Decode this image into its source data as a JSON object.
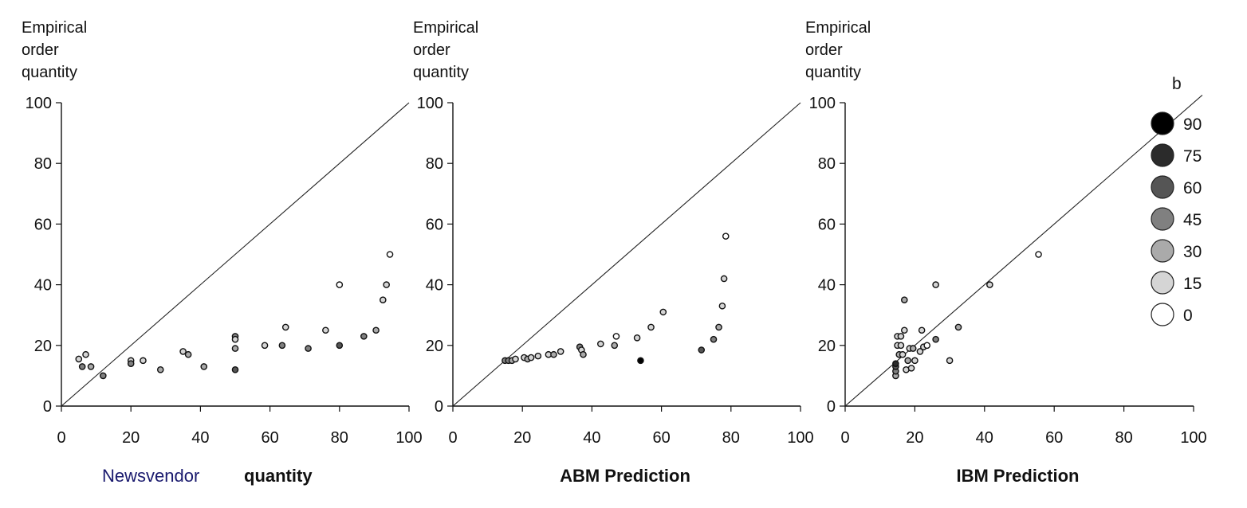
{
  "chart_data": [
    {
      "type": "scatter",
      "ylabel": [
        "Empirical",
        "order",
        "quantity"
      ],
      "xlabel_plain": "Newsvendor",
      "xlabel_bold": "quantity",
      "xlim": [
        0,
        100
      ],
      "ylim": [
        0,
        100
      ],
      "xticks": [
        "0",
        "20",
        "40",
        "60",
        "80",
        "100"
      ],
      "yticks": [
        "0",
        "20",
        "40",
        "60",
        "80",
        "100"
      ],
      "reference_line": "y = x",
      "points": [
        {
          "x": 5,
          "y": 15.5,
          "b": 15
        },
        {
          "x": 6,
          "y": 13,
          "b": 45
        },
        {
          "x": 7,
          "y": 17,
          "b": 15
        },
        {
          "x": 8.5,
          "y": 13,
          "b": 30
        },
        {
          "x": 12,
          "y": 10,
          "b": 45
        },
        {
          "x": 20,
          "y": 15,
          "b": 15
        },
        {
          "x": 20,
          "y": 14,
          "b": 45
        },
        {
          "x": 23.5,
          "y": 15,
          "b": 15
        },
        {
          "x": 28.5,
          "y": 12,
          "b": 30
        },
        {
          "x": 35,
          "y": 18,
          "b": 15
        },
        {
          "x": 36.5,
          "y": 17,
          "b": 30
        },
        {
          "x": 41,
          "y": 13,
          "b": 30
        },
        {
          "x": 50,
          "y": 23,
          "b": 45
        },
        {
          "x": 50,
          "y": 22,
          "b": 15
        },
        {
          "x": 50,
          "y": 19,
          "b": 30
        },
        {
          "x": 50,
          "y": 12,
          "b": 60
        },
        {
          "x": 58.5,
          "y": 20,
          "b": 15
        },
        {
          "x": 63.5,
          "y": 20,
          "b": 45
        },
        {
          "x": 64.5,
          "y": 26,
          "b": 15
        },
        {
          "x": 71,
          "y": 19,
          "b": 45
        },
        {
          "x": 76,
          "y": 25,
          "b": 15
        },
        {
          "x": 80,
          "y": 40,
          "b": 0
        },
        {
          "x": 80,
          "y": 20,
          "b": 60
        },
        {
          "x": 87,
          "y": 23,
          "b": 45
        },
        {
          "x": 90.5,
          "y": 25,
          "b": 30
        },
        {
          "x": 92.5,
          "y": 35,
          "b": 15
        },
        {
          "x": 93.5,
          "y": 40,
          "b": 15
        },
        {
          "x": 94.5,
          "y": 50,
          "b": 0
        }
      ]
    },
    {
      "type": "scatter",
      "ylabel": [
        "Empirical",
        "order",
        "quantity"
      ],
      "xlabel_bold": "ABM Prediction",
      "xlim": [
        0,
        100
      ],
      "ylim": [
        0,
        100
      ],
      "xticks": [
        "0",
        "20",
        "40",
        "60",
        "80",
        "100"
      ],
      "yticks": [
        "0",
        "20",
        "40",
        "60",
        "80",
        "100"
      ],
      "reference_line": "y = x",
      "points": [
        {
          "x": 15,
          "y": 15,
          "b": 45
        },
        {
          "x": 16,
          "y": 15,
          "b": 45
        },
        {
          "x": 17,
          "y": 15,
          "b": 30
        },
        {
          "x": 18,
          "y": 15.5,
          "b": 15
        },
        {
          "x": 20.5,
          "y": 16,
          "b": 15
        },
        {
          "x": 21.5,
          "y": 15.5,
          "b": 30
        },
        {
          "x": 22.5,
          "y": 16,
          "b": 15
        },
        {
          "x": 24.5,
          "y": 16.5,
          "b": 15
        },
        {
          "x": 27.5,
          "y": 17,
          "b": 15
        },
        {
          "x": 29,
          "y": 17,
          "b": 30
        },
        {
          "x": 31,
          "y": 18,
          "b": 15
        },
        {
          "x": 36.5,
          "y": 19.5,
          "b": 45
        },
        {
          "x": 37,
          "y": 18.5,
          "b": 15
        },
        {
          "x": 37.5,
          "y": 17,
          "b": 30
        },
        {
          "x": 42.5,
          "y": 20.5,
          "b": 15
        },
        {
          "x": 46.5,
          "y": 20,
          "b": 30
        },
        {
          "x": 47,
          "y": 23,
          "b": 0
        },
        {
          "x": 53,
          "y": 22.5,
          "b": 15
        },
        {
          "x": 54,
          "y": 15,
          "b": 90
        },
        {
          "x": 57,
          "y": 26,
          "b": 15
        },
        {
          "x": 60.5,
          "y": 31,
          "b": 15
        },
        {
          "x": 71.5,
          "y": 18.5,
          "b": 60
        },
        {
          "x": 75,
          "y": 22,
          "b": 45
        },
        {
          "x": 76.5,
          "y": 26,
          "b": 30
        },
        {
          "x": 77.5,
          "y": 33,
          "b": 15
        },
        {
          "x": 78,
          "y": 42,
          "b": 15
        },
        {
          "x": 78.5,
          "y": 56,
          "b": 0
        }
      ]
    },
    {
      "type": "scatter",
      "ylabel": [
        "Empirical",
        "order",
        "quantity"
      ],
      "xlabel_bold": "IBM Prediction",
      "xlim": [
        0,
        100
      ],
      "ylim": [
        0,
        100
      ],
      "xticks": [
        "0",
        "20",
        "40",
        "60",
        "80",
        "100"
      ],
      "yticks": [
        "0",
        "20",
        "40",
        "60",
        "80",
        "100"
      ],
      "reference_line": "y = x",
      "legend": {
        "title": "b",
        "placement": "right",
        "entries": [
          {
            "label": "90",
            "b": 90
          },
          {
            "label": "75",
            "b": 75
          },
          {
            "label": "60",
            "b": 60
          },
          {
            "label": "45",
            "b": 45
          },
          {
            "label": "30",
            "b": 30
          },
          {
            "label": "15",
            "b": 15
          },
          {
            "label": "0",
            "b": 0
          }
        ]
      },
      "points": [
        {
          "x": 14.5,
          "y": 10,
          "b": 30
        },
        {
          "x": 14.5,
          "y": 11.5,
          "b": 45
        },
        {
          "x": 14.5,
          "y": 13,
          "b": 60
        },
        {
          "x": 14.5,
          "y": 14,
          "b": 75
        },
        {
          "x": 15,
          "y": 20,
          "b": 15
        },
        {
          "x": 15,
          "y": 23,
          "b": 15
        },
        {
          "x": 15.5,
          "y": 17,
          "b": 30
        },
        {
          "x": 16,
          "y": 20,
          "b": 15
        },
        {
          "x": 16,
          "y": 23,
          "b": 15
        },
        {
          "x": 16.5,
          "y": 17,
          "b": 15
        },
        {
          "x": 17,
          "y": 25,
          "b": 15
        },
        {
          "x": 17,
          "y": 35,
          "b": 30
        },
        {
          "x": 17.5,
          "y": 12,
          "b": 15
        },
        {
          "x": 18,
          "y": 15,
          "b": 30
        },
        {
          "x": 18.5,
          "y": 19,
          "b": 15
        },
        {
          "x": 19,
          "y": 12.5,
          "b": 15
        },
        {
          "x": 19.5,
          "y": 19,
          "b": 30
        },
        {
          "x": 20,
          "y": 15,
          "b": 15
        },
        {
          "x": 21.5,
          "y": 18,
          "b": 15
        },
        {
          "x": 22,
          "y": 25,
          "b": 15
        },
        {
          "x": 22.5,
          "y": 19.5,
          "b": 15
        },
        {
          "x": 23.5,
          "y": 20,
          "b": 0
        },
        {
          "x": 26,
          "y": 40,
          "b": 15
        },
        {
          "x": 26,
          "y": 22,
          "b": 45
        },
        {
          "x": 30,
          "y": 15,
          "b": 15
        },
        {
          "x": 32.5,
          "y": 26,
          "b": 30
        },
        {
          "x": 41.5,
          "y": 40,
          "b": 15
        },
        {
          "x": 55.5,
          "y": 50,
          "b": 0
        }
      ]
    }
  ]
}
